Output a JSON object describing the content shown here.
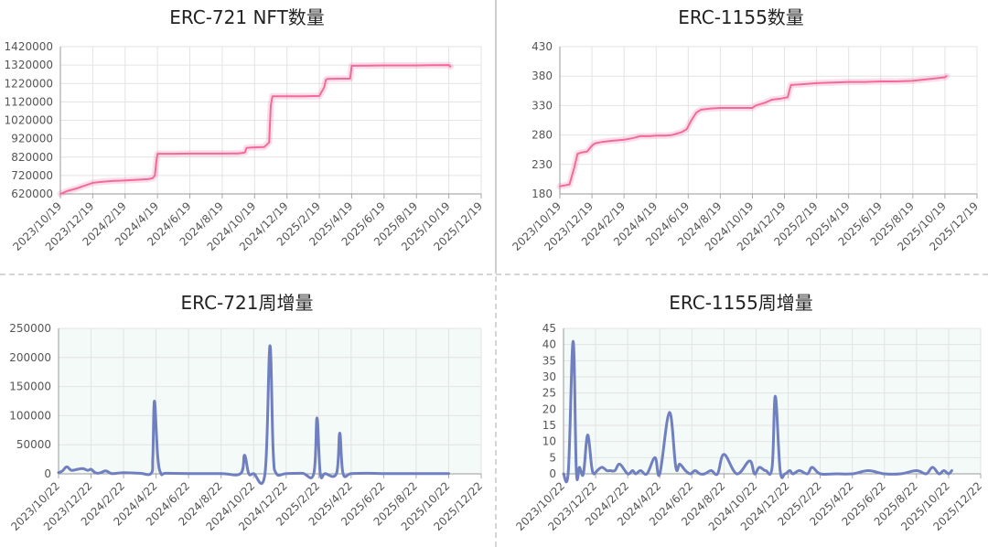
{
  "chart_data": [
    {
      "type": "line",
      "title": "ERC-721 NFT数量",
      "xlabel": "",
      "ylabel": "",
      "x_ticks": [
        "2023/10/19",
        "2023/12/19",
        "2024/2/19",
        "2024/4/19",
        "2024/6/19",
        "2024/8/19",
        "2024/10/19",
        "2024/12/19",
        "2025/2/19",
        "2025/4/19",
        "2025/6/19",
        "2025/8/19",
        "2025/10/19",
        "2025/12/19"
      ],
      "y_ticks": [
        "620000",
        "720000",
        "820000",
        "920000",
        "1020000",
        "1120000",
        "1220000",
        "1320000",
        "1420000"
      ],
      "ylim": [
        620000,
        1420000
      ],
      "grid": true,
      "background": "#ffffff",
      "color": "#f06b9c",
      "series": [
        {
          "x": [
            0,
            0.2,
            0.5,
            0.8,
            1.0,
            1.3,
            1.6,
            2.0,
            2.4,
            2.7,
            2.85,
            2.92,
            2.96,
            3.0,
            3.5,
            4.0,
            4.5,
            5.0,
            5.5,
            5.7,
            5.75,
            5.9,
            6.3,
            6.45,
            6.5,
            6.55,
            6.6,
            7.0,
            7.5,
            8.0,
            8.15,
            8.2,
            8.25,
            8.6,
            8.95,
            9.0,
            9.5,
            10.0,
            10.5,
            11.0,
            11.5,
            12.0,
            12.05
          ],
          "values": [
            620000,
            635000,
            650000,
            668000,
            680000,
            686000,
            690000,
            693000,
            697000,
            700000,
            705000,
            720000,
            790000,
            838000,
            838000,
            839000,
            839000,
            839000,
            840000,
            845000,
            870000,
            872000,
            875000,
            900000,
            1100000,
            1150000,
            1150000,
            1150000,
            1150000,
            1152000,
            1200000,
            1240000,
            1245000,
            1246000,
            1246000,
            1316000,
            1317000,
            1318000,
            1318000,
            1318000,
            1319000,
            1320000,
            1312000
          ]
        }
      ]
    },
    {
      "type": "line",
      "title": "ERC-1155数量",
      "xlabel": "",
      "ylabel": "",
      "x_ticks": [
        "2023/10/19",
        "2023/12/19",
        "2024/2/19",
        "2024/4/19",
        "2024/6/19",
        "2024/8/19",
        "2024/10/19",
        "2024/12/19",
        "2025/2/19",
        "2025/4/19",
        "2025/6/19",
        "2025/8/19",
        "2025/10/19",
        "2025/12/19"
      ],
      "y_ticks": [
        "180",
        "230",
        "280",
        "330",
        "380",
        "430"
      ],
      "ylim": [
        180,
        430
      ],
      "grid": true,
      "background": "#ffffff",
      "color": "#f06b9c",
      "series": [
        {
          "x": [
            0,
            0.3,
            0.45,
            0.55,
            0.65,
            0.85,
            1.0,
            1.1,
            1.3,
            1.6,
            2.0,
            2.3,
            2.5,
            2.8,
            3.0,
            3.3,
            3.5,
            3.8,
            3.95,
            4.1,
            4.25,
            4.4,
            4.7,
            5.0,
            5.5,
            6.0,
            6.1,
            6.4,
            6.6,
            6.9,
            7.1,
            7.15,
            7.2,
            7.5,
            8.0,
            8.5,
            9.0,
            9.5,
            10.0,
            10.5,
            11.0,
            11.5,
            12.0,
            12.05
          ],
          "values": [
            193,
            196,
            225,
            248,
            250,
            252,
            262,
            266,
            268,
            270,
            272,
            275,
            278,
            278,
            279,
            279,
            280,
            285,
            290,
            305,
            318,
            323,
            325,
            326,
            326,
            326,
            330,
            335,
            340,
            342,
            344,
            355,
            365,
            366,
            368,
            369,
            370,
            370,
            371,
            371,
            372,
            375,
            378,
            380
          ]
        }
      ]
    },
    {
      "type": "area",
      "title": "ERC-721周增量",
      "xlabel": "",
      "ylabel": "",
      "x_ticks": [
        "2023/10/22",
        "2023/12/22",
        "2024/2/22",
        "2024/4/22",
        "2024/6/22",
        "2024/8/22",
        "2024/10/22",
        "2024/12/22",
        "2025/2/22",
        "2025/4/22",
        "2025/6/22",
        "2025/8/22",
        "2025/10/22",
        "2025/12/22"
      ],
      "y_ticks": [
        "0",
        "50000",
        "100000",
        "150000",
        "200000",
        "250000"
      ],
      "ylim": [
        0,
        250000
      ],
      "grid": true,
      "background": "#f3faf7",
      "color": "#6f7fbf",
      "series": [
        {
          "x": [
            0,
            0.12,
            0.25,
            0.4,
            0.6,
            0.75,
            0.9,
            1.0,
            1.1,
            1.2,
            1.3,
            1.45,
            1.6,
            1.7,
            2.0,
            2.5,
            2.85,
            2.9,
            2.95,
            3.05,
            3.15,
            3.3,
            4.0,
            5.0,
            5.6,
            5.72,
            5.85,
            6.0,
            6.35,
            6.5,
            6.6,
            6.7,
            7.0,
            7.5,
            7.85,
            7.95,
            8.05,
            8.2,
            8.55,
            8.65,
            8.75,
            9.0,
            9.5,
            10.0,
            10.5,
            11.0,
            11.5,
            12.0
          ],
          "values": [
            2000,
            5000,
            12000,
            6000,
            8000,
            9000,
            6000,
            8000,
            3000,
            1000,
            2000,
            5000,
            1000,
            500,
            2000,
            1000,
            1000,
            30000,
            125000,
            30000,
            500,
            1000,
            500,
            500,
            500,
            32000,
            500,
            500,
            1000,
            220000,
            40000,
            500,
            500,
            1000,
            500,
            96000,
            500,
            500,
            1000,
            70000,
            500,
            500,
            1000,
            500,
            500,
            500,
            500,
            500
          ]
        }
      ]
    },
    {
      "type": "area",
      "title": "ERC-1155周增量",
      "xlabel": "",
      "ylabel": "",
      "x_ticks": [
        "2023/10/22",
        "2023/12/22",
        "2024/2/22",
        "2024/4/22",
        "2024/6/22",
        "2024/8/22",
        "2024/10/22",
        "2024/12/22",
        "2025/2/22",
        "2025/4/22",
        "2025/6/22",
        "2025/8/22",
        "2025/10/22",
        "2025/12/22"
      ],
      "y_ticks": [
        "0",
        "5",
        "10",
        "15",
        "20",
        "25",
        "30",
        "35",
        "40",
        "45"
      ],
      "ylim": [
        0,
        45
      ],
      "grid": true,
      "background": "#f3faf7",
      "color": "#6f7fbf",
      "series": [
        {
          "x": [
            0,
            0.15,
            0.3,
            0.4,
            0.5,
            0.62,
            0.75,
            0.88,
            0.95,
            1.05,
            1.2,
            1.35,
            1.45,
            1.6,
            1.75,
            2.0,
            2.15,
            2.25,
            2.4,
            2.6,
            2.85,
            3.0,
            3.3,
            3.5,
            3.62,
            3.8,
            3.95,
            4.1,
            4.25,
            4.4,
            4.6,
            4.8,
            5.0,
            5.4,
            5.8,
            5.95,
            6.1,
            6.3,
            6.5,
            6.6,
            6.75,
            6.9,
            7.05,
            7.15,
            7.35,
            7.6,
            7.75,
            8.0,
            8.5,
            9.0,
            9.5,
            10.0,
            10.5,
            11.0,
            11.3,
            11.5,
            11.7,
            11.85,
            12.0,
            12.1
          ],
          "values": [
            0,
            1,
            41,
            1,
            2,
            0,
            12,
            2,
            0,
            1,
            2,
            1,
            1,
            1,
            3,
            0,
            1,
            0,
            1,
            0,
            5,
            0,
            19,
            2,
            3,
            1,
            0,
            1,
            0,
            0,
            1,
            0,
            6,
            0,
            4,
            0,
            2,
            1,
            2,
            24,
            1,
            0,
            1,
            0,
            1,
            0,
            2,
            0,
            0,
            0,
            1,
            0,
            0,
            1,
            0,
            2,
            0,
            1,
            0,
            1
          ]
        }
      ]
    }
  ]
}
